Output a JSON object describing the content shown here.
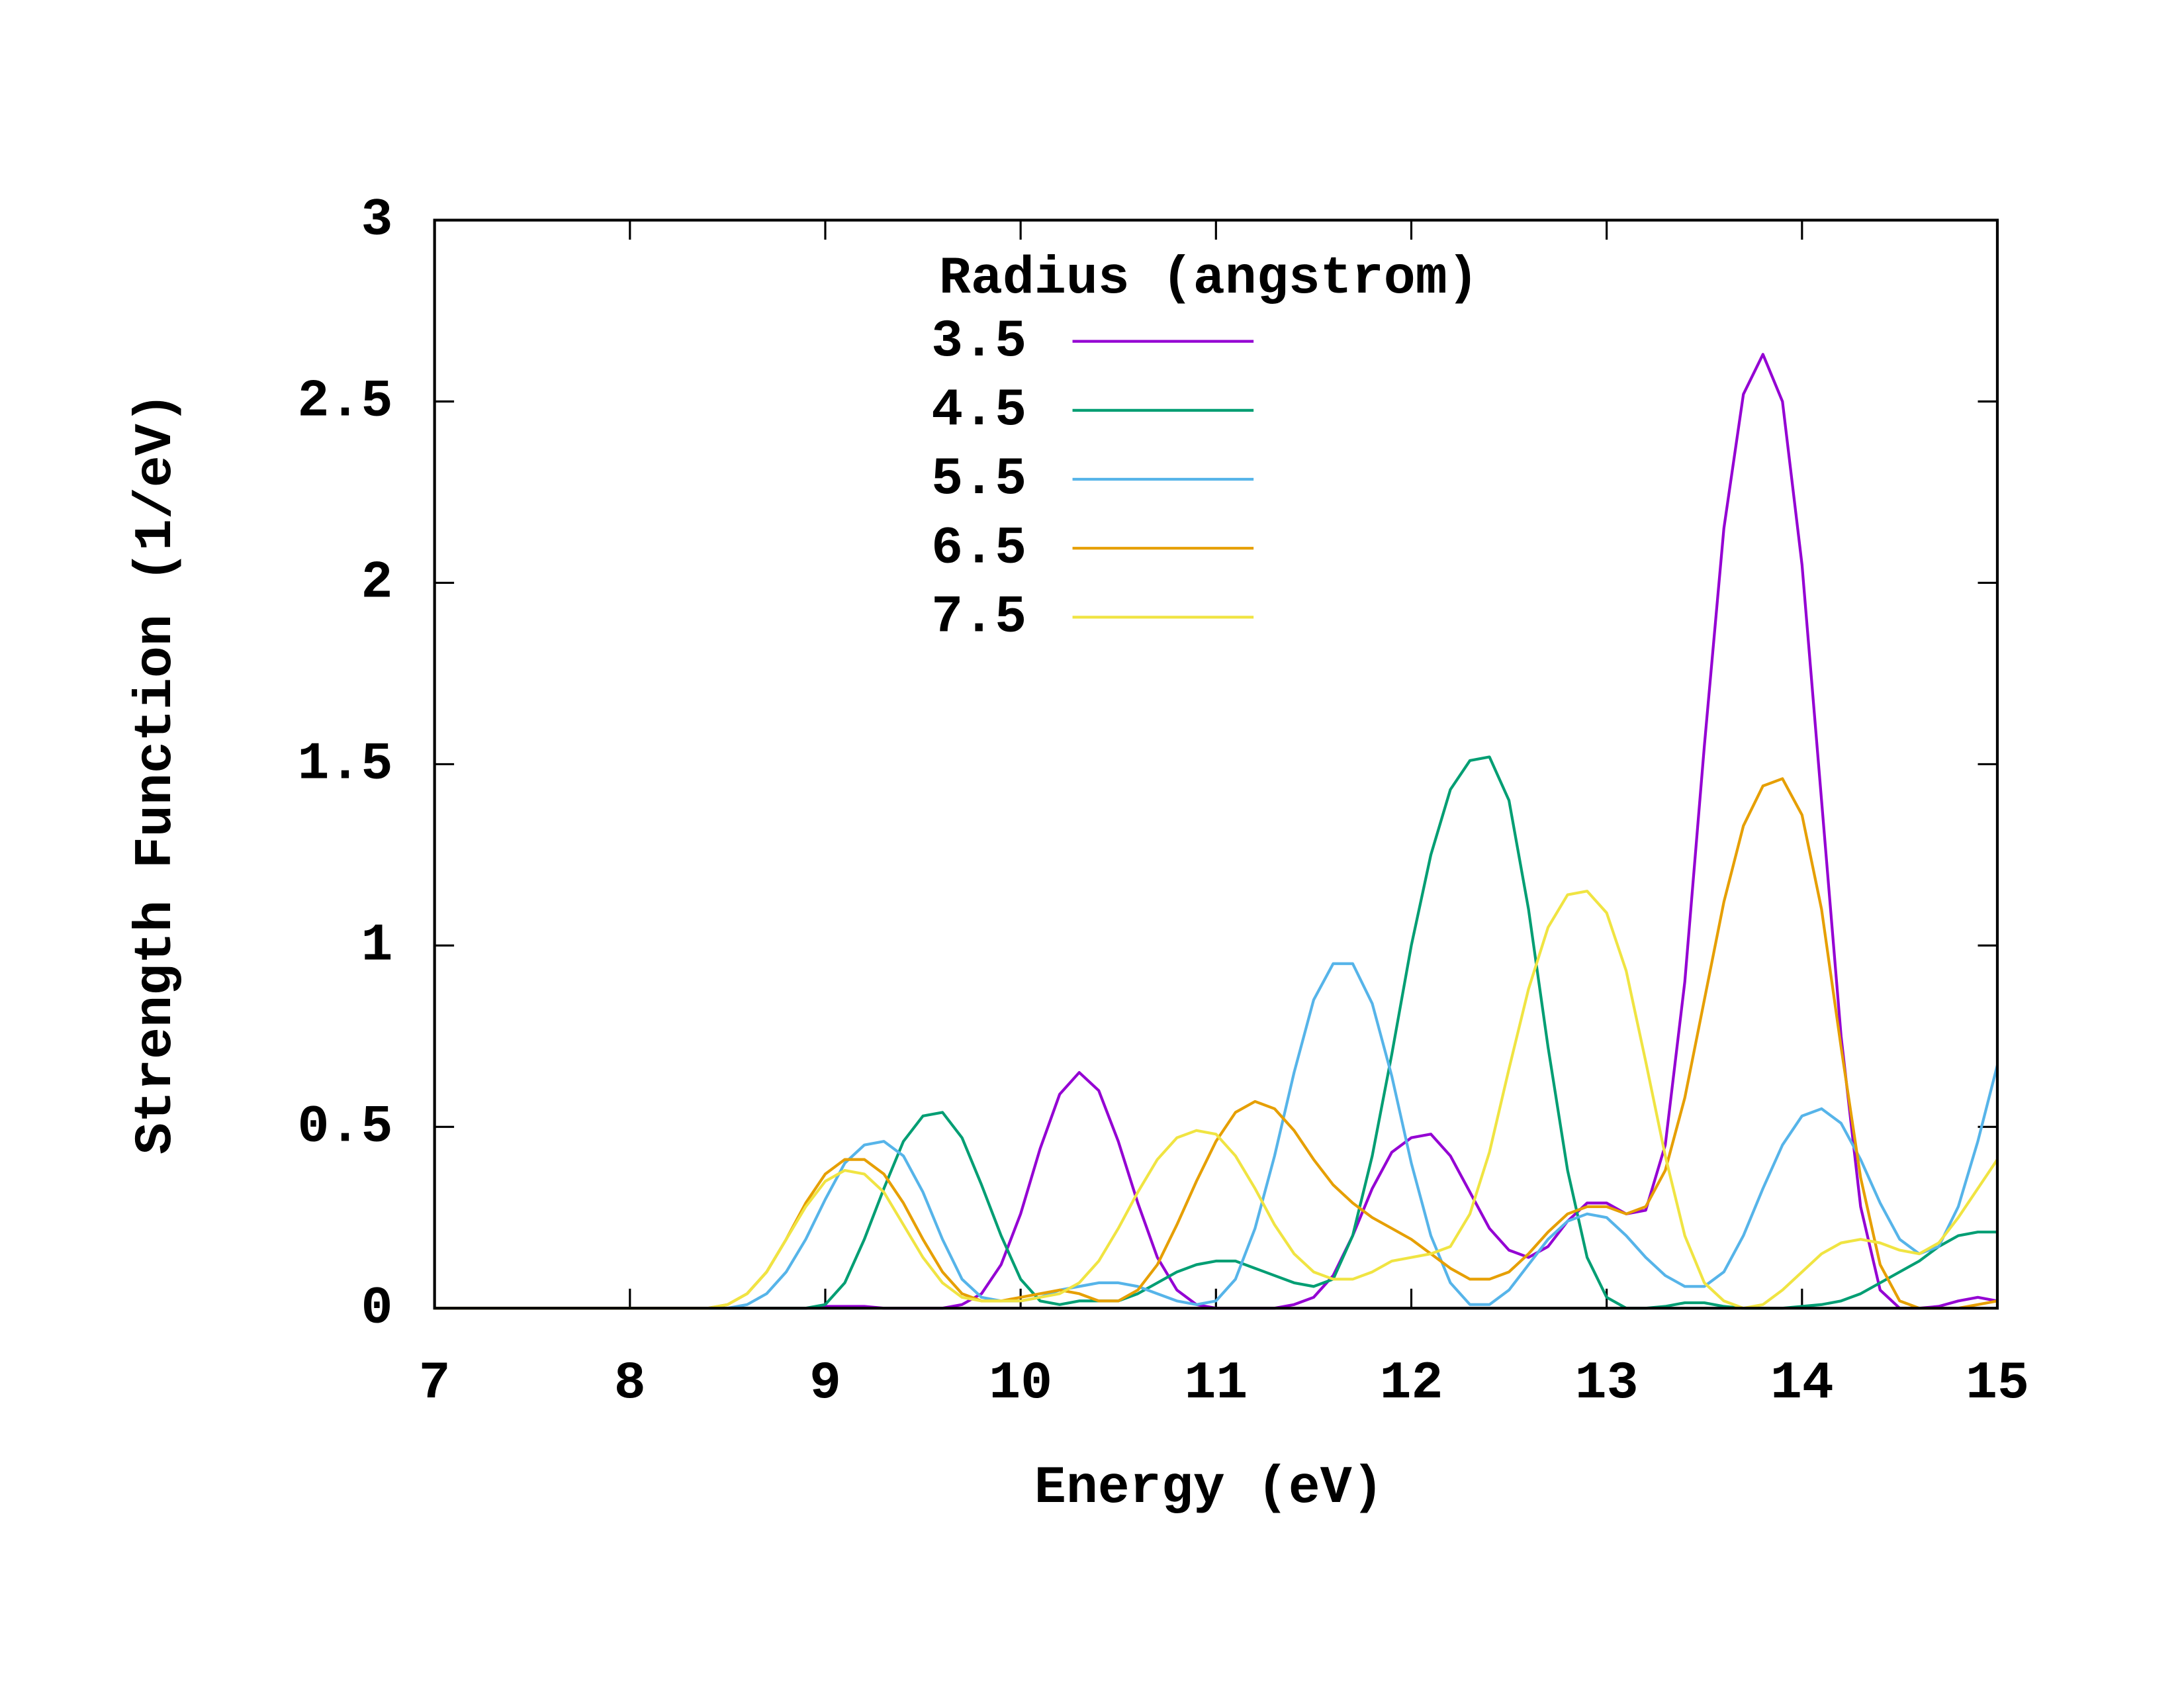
{
  "chart_data": {
    "type": "line",
    "xlabel": "Energy (eV)",
    "ylabel": "Strength Function (1/eV)",
    "legend_title": "Radius (angstrom)",
    "legend": "top-center",
    "xlim": [
      7,
      15
    ],
    "ylim": [
      0,
      3
    ],
    "xticks": [
      7,
      8,
      9,
      10,
      11,
      12,
      13,
      14,
      15
    ],
    "yticks": [
      0,
      0.5,
      1,
      1.5,
      2,
      2.5,
      3
    ],
    "x": [
      7,
      7.1,
      7.2,
      7.3,
      7.4,
      7.5,
      7.6,
      7.7,
      7.8,
      7.9,
      8,
      8.1,
      8.2,
      8.3,
      8.4,
      8.5,
      8.6,
      8.7,
      8.8,
      8.9,
      9,
      9.1,
      9.2,
      9.3,
      9.4,
      9.5,
      9.6,
      9.7,
      9.8,
      9.9,
      10,
      10.1,
      10.2,
      10.3,
      10.4,
      10.5,
      10.6,
      10.7,
      10.8,
      10.9,
      11,
      11.1,
      11.2,
      11.3,
      11.4,
      11.5,
      11.6,
      11.7,
      11.8,
      11.9,
      12,
      12.1,
      12.2,
      12.3,
      12.4,
      12.5,
      12.6,
      12.7,
      12.8,
      12.9,
      13,
      13.1,
      13.2,
      13.3,
      13.4,
      13.5,
      13.6,
      13.7,
      13.8,
      13.9,
      14,
      14.1,
      14.2,
      14.3,
      14.4,
      14.5,
      14.6,
      14.7,
      14.8,
      14.9,
      15
    ],
    "series": [
      {
        "name": "3.5",
        "color": "#9400d3",
        "values": [
          0,
          0,
          0,
          0,
          0,
          0,
          0,
          0,
          0,
          0,
          0,
          0,
          0,
          0,
          0,
          0,
          0,
          0,
          0,
          0,
          0.005,
          0.005,
          0.005,
          0,
          0,
          0,
          0,
          0.01,
          0.04,
          0.12,
          0.26,
          0.44,
          0.59,
          0.65,
          0.6,
          0.46,
          0.29,
          0.14,
          0.05,
          0.01,
          0,
          0,
          0,
          0,
          0.01,
          0.03,
          0.09,
          0.2,
          0.33,
          0.43,
          0.47,
          0.48,
          0.42,
          0.32,
          0.22,
          0.16,
          0.14,
          0.17,
          0.24,
          0.29,
          0.29,
          0.26,
          0.27,
          0.45,
          0.9,
          1.55,
          2.15,
          2.52,
          2.63,
          2.5,
          2.05,
          1.4,
          0.75,
          0.28,
          0.05,
          0,
          0,
          0.005,
          0.02,
          0.03,
          0.02
        ]
      },
      {
        "name": "4.5",
        "color": "#009e73",
        "values": [
          0,
          0,
          0,
          0,
          0,
          0,
          0,
          0,
          0,
          0,
          0,
          0,
          0,
          0,
          0,
          0,
          0,
          0,
          0,
          0,
          0.01,
          0.07,
          0.19,
          0.33,
          0.46,
          0.53,
          0.54,
          0.47,
          0.34,
          0.2,
          0.08,
          0.02,
          0.01,
          0.02,
          0.02,
          0.02,
          0.04,
          0.07,
          0.1,
          0.12,
          0.13,
          0.13,
          0.11,
          0.09,
          0.07,
          0.06,
          0.08,
          0.2,
          0.42,
          0.7,
          1.0,
          1.25,
          1.43,
          1.51,
          1.52,
          1.4,
          1.1,
          0.72,
          0.38,
          0.14,
          0.03,
          0,
          0,
          0.005,
          0.015,
          0.015,
          0.005,
          0,
          0,
          0,
          0.005,
          0.01,
          0.02,
          0.04,
          0.07,
          0.1,
          0.13,
          0.17,
          0.2,
          0.21,
          0.21
        ]
      },
      {
        "name": "5.5",
        "color": "#56b4e9",
        "values": [
          0,
          0,
          0,
          0,
          0,
          0,
          0,
          0,
          0,
          0,
          0,
          0,
          0,
          0,
          0,
          0,
          0.01,
          0.04,
          0.1,
          0.19,
          0.3,
          0.4,
          0.45,
          0.46,
          0.42,
          0.32,
          0.19,
          0.08,
          0.03,
          0.02,
          0.02,
          0.03,
          0.05,
          0.06,
          0.07,
          0.07,
          0.06,
          0.04,
          0.02,
          0.01,
          0.02,
          0.08,
          0.22,
          0.42,
          0.65,
          0.85,
          0.95,
          0.95,
          0.84,
          0.64,
          0.4,
          0.2,
          0.07,
          0.01,
          0.01,
          0.05,
          0.12,
          0.19,
          0.24,
          0.26,
          0.25,
          0.2,
          0.14,
          0.09,
          0.06,
          0.06,
          0.1,
          0.2,
          0.33,
          0.45,
          0.53,
          0.55,
          0.51,
          0.41,
          0.29,
          0.19,
          0.15,
          0.17,
          0.28,
          0.46,
          0.67
        ]
      },
      {
        "name": "6.5",
        "color": "#e69f00",
        "values": [
          0,
          0,
          0,
          0,
          0,
          0,
          0,
          0,
          0,
          0,
          0,
          0,
          0,
          0,
          0,
          0.01,
          0.04,
          0.1,
          0.19,
          0.29,
          0.37,
          0.41,
          0.41,
          0.37,
          0.29,
          0.19,
          0.1,
          0.04,
          0.02,
          0.02,
          0.03,
          0.04,
          0.05,
          0.04,
          0.02,
          0.02,
          0.05,
          0.12,
          0.23,
          0.35,
          0.46,
          0.54,
          0.57,
          0.55,
          0.49,
          0.41,
          0.34,
          0.29,
          0.25,
          0.22,
          0.19,
          0.15,
          0.11,
          0.08,
          0.08,
          0.1,
          0.15,
          0.21,
          0.26,
          0.28,
          0.28,
          0.26,
          0.28,
          0.38,
          0.58,
          0.85,
          1.12,
          1.33,
          1.44,
          1.46,
          1.36,
          1.1,
          0.72,
          0.36,
          0.12,
          0.02,
          0,
          0,
          0,
          0.01,
          0.02
        ]
      },
      {
        "name": "7.5",
        "color": "#f0e442",
        "values": [
          0,
          0,
          0,
          0,
          0,
          0,
          0,
          0,
          0,
          0,
          0,
          0,
          0,
          0,
          0,
          0.01,
          0.04,
          0.1,
          0.19,
          0.28,
          0.35,
          0.38,
          0.37,
          0.32,
          0.23,
          0.14,
          0.07,
          0.03,
          0.02,
          0.02,
          0.02,
          0.03,
          0.04,
          0.07,
          0.13,
          0.22,
          0.32,
          0.41,
          0.47,
          0.49,
          0.48,
          0.42,
          0.33,
          0.23,
          0.15,
          0.1,
          0.08,
          0.08,
          0.1,
          0.13,
          0.14,
          0.15,
          0.17,
          0.26,
          0.43,
          0.66,
          0.88,
          1.05,
          1.14,
          1.15,
          1.09,
          0.93,
          0.68,
          0.42,
          0.2,
          0.07,
          0.02,
          0,
          0.01,
          0.05,
          0.1,
          0.15,
          0.18,
          0.19,
          0.18,
          0.16,
          0.15,
          0.18,
          0.25,
          0.33,
          0.41
        ]
      }
    ]
  }
}
